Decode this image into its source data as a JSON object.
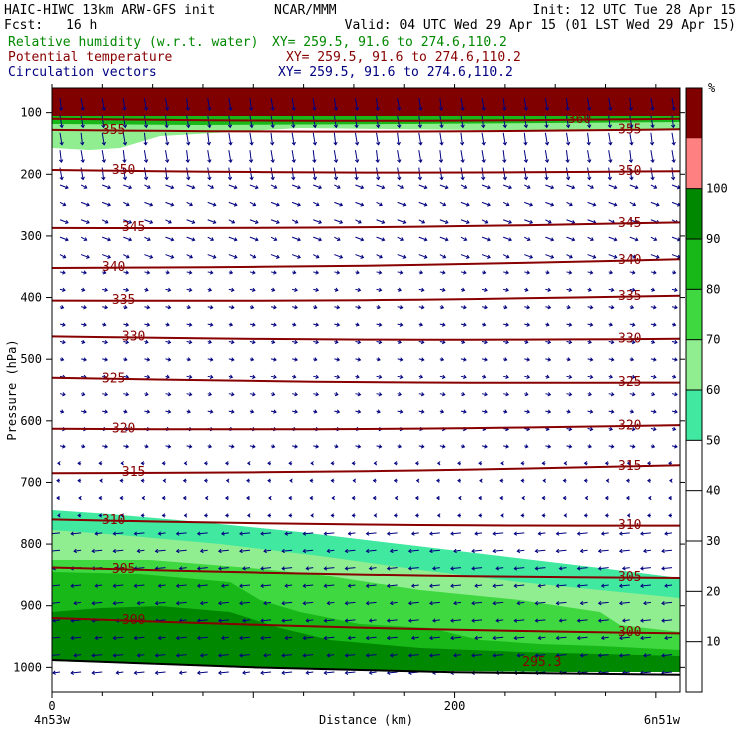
{
  "header": {
    "model": "HAIC-HIWC 13km ARW-GFS init",
    "org": "NCAR/MMM",
    "init": "Init: 12 UTC Tue 28 Apr 15",
    "fcst_label": "Fcst:",
    "fcst_value": "16 h",
    "valid": "Valid: 04 UTC Wed 29 Apr 15 (01 LST Wed 29 Apr 15)"
  },
  "fields": [
    {
      "label": "Relative humidity (w.r.t. water)",
      "xy": "XY= 259.5, 91.6 to 274.6,110.2",
      "color": "#008800"
    },
    {
      "label": "Potential temperature",
      "xy": "XY= 259.5, 91.6 to 274.6,110.2",
      "color": "#880000"
    },
    {
      "label": "Circulation vectors",
      "xy": "XY= 259.5, 91.6 to 274.6,110.2",
      "color": "#000080"
    }
  ],
  "chart_data": {
    "type": "heatmap",
    "xlabel": "Distance (km)",
    "ylabel": "Pressure (hPa)",
    "xlim": [
      0,
      312
    ],
    "ylim": [
      1040,
      60
    ],
    "x_ticks": [
      0,
      200
    ],
    "y_ticks": [
      100,
      200,
      300,
      400,
      500,
      600,
      700,
      800,
      900,
      1000
    ],
    "x_end_labels": [
      "4n53w",
      "6n51w"
    ],
    "colorbar": {
      "unit": "%",
      "levels": [
        0,
        10,
        20,
        30,
        40,
        50,
        60,
        70,
        80,
        90,
        100
      ],
      "tick_labels": [
        "10",
        "20",
        "30",
        "40",
        "50",
        "60",
        "70",
        "80",
        "90",
        "100"
      ],
      "colors": [
        "#ffffff",
        "#ffffff",
        "#ffffff",
        "#ffffff",
        "#ffffff",
        "#40e8a0",
        "#90ee90",
        "#40d840",
        "#18b818",
        "#008800",
        "#ff8080",
        "#800000"
      ]
    },
    "theta_contours": [
      {
        "level": 300,
        "p_left": 920,
        "p_right": 945,
        "label_left": "300",
        "label_right": "300"
      },
      {
        "level": 305,
        "p_left": 838,
        "p_right": 855,
        "label_left": "305",
        "label_right": "305"
      },
      {
        "level": 310,
        "p_left": 760,
        "p_right": 770,
        "label_left": "310",
        "label_right": "310"
      },
      {
        "level": 315,
        "p_left": 685,
        "p_right": 672,
        "label_left": "315",
        "label_right": "315"
      },
      {
        "level": 320,
        "p_left": 613,
        "p_right": 607,
        "label_left": "320",
        "label_right": "320"
      },
      {
        "level": 325,
        "p_left": 530,
        "p_right": 538,
        "label_left": "325",
        "label_right": "325"
      },
      {
        "level": 330,
        "p_left": 463,
        "p_right": 467,
        "label_left": "330",
        "label_right": "330"
      },
      {
        "level": 335,
        "p_left": 405,
        "p_right": 397,
        "label_left": "335",
        "label_right": "335"
      },
      {
        "level": 340,
        "p_left": 352,
        "p_right": 338,
        "label_left": "340",
        "label_right": "340"
      },
      {
        "level": 345,
        "p_left": 287,
        "p_right": 278,
        "label_left": "345",
        "label_right": "345"
      },
      {
        "level": 350,
        "p_left": 193,
        "p_right": 195,
        "label_left": "350",
        "label_right": "350"
      },
      {
        "level": 355,
        "p_left": 128,
        "p_right": 127,
        "label_left": "355",
        "label_right": "355"
      },
      {
        "level": 360,
        "p_left": 110,
        "p_right": 110,
        "label_left": "",
        "label_right": "360"
      }
    ],
    "extra_labels": [
      "295.3"
    ],
    "surface_pressure": {
      "x": [
        0,
        100,
        200,
        312
      ],
      "p": [
        988,
        1000,
        1008,
        1012
      ]
    }
  }
}
